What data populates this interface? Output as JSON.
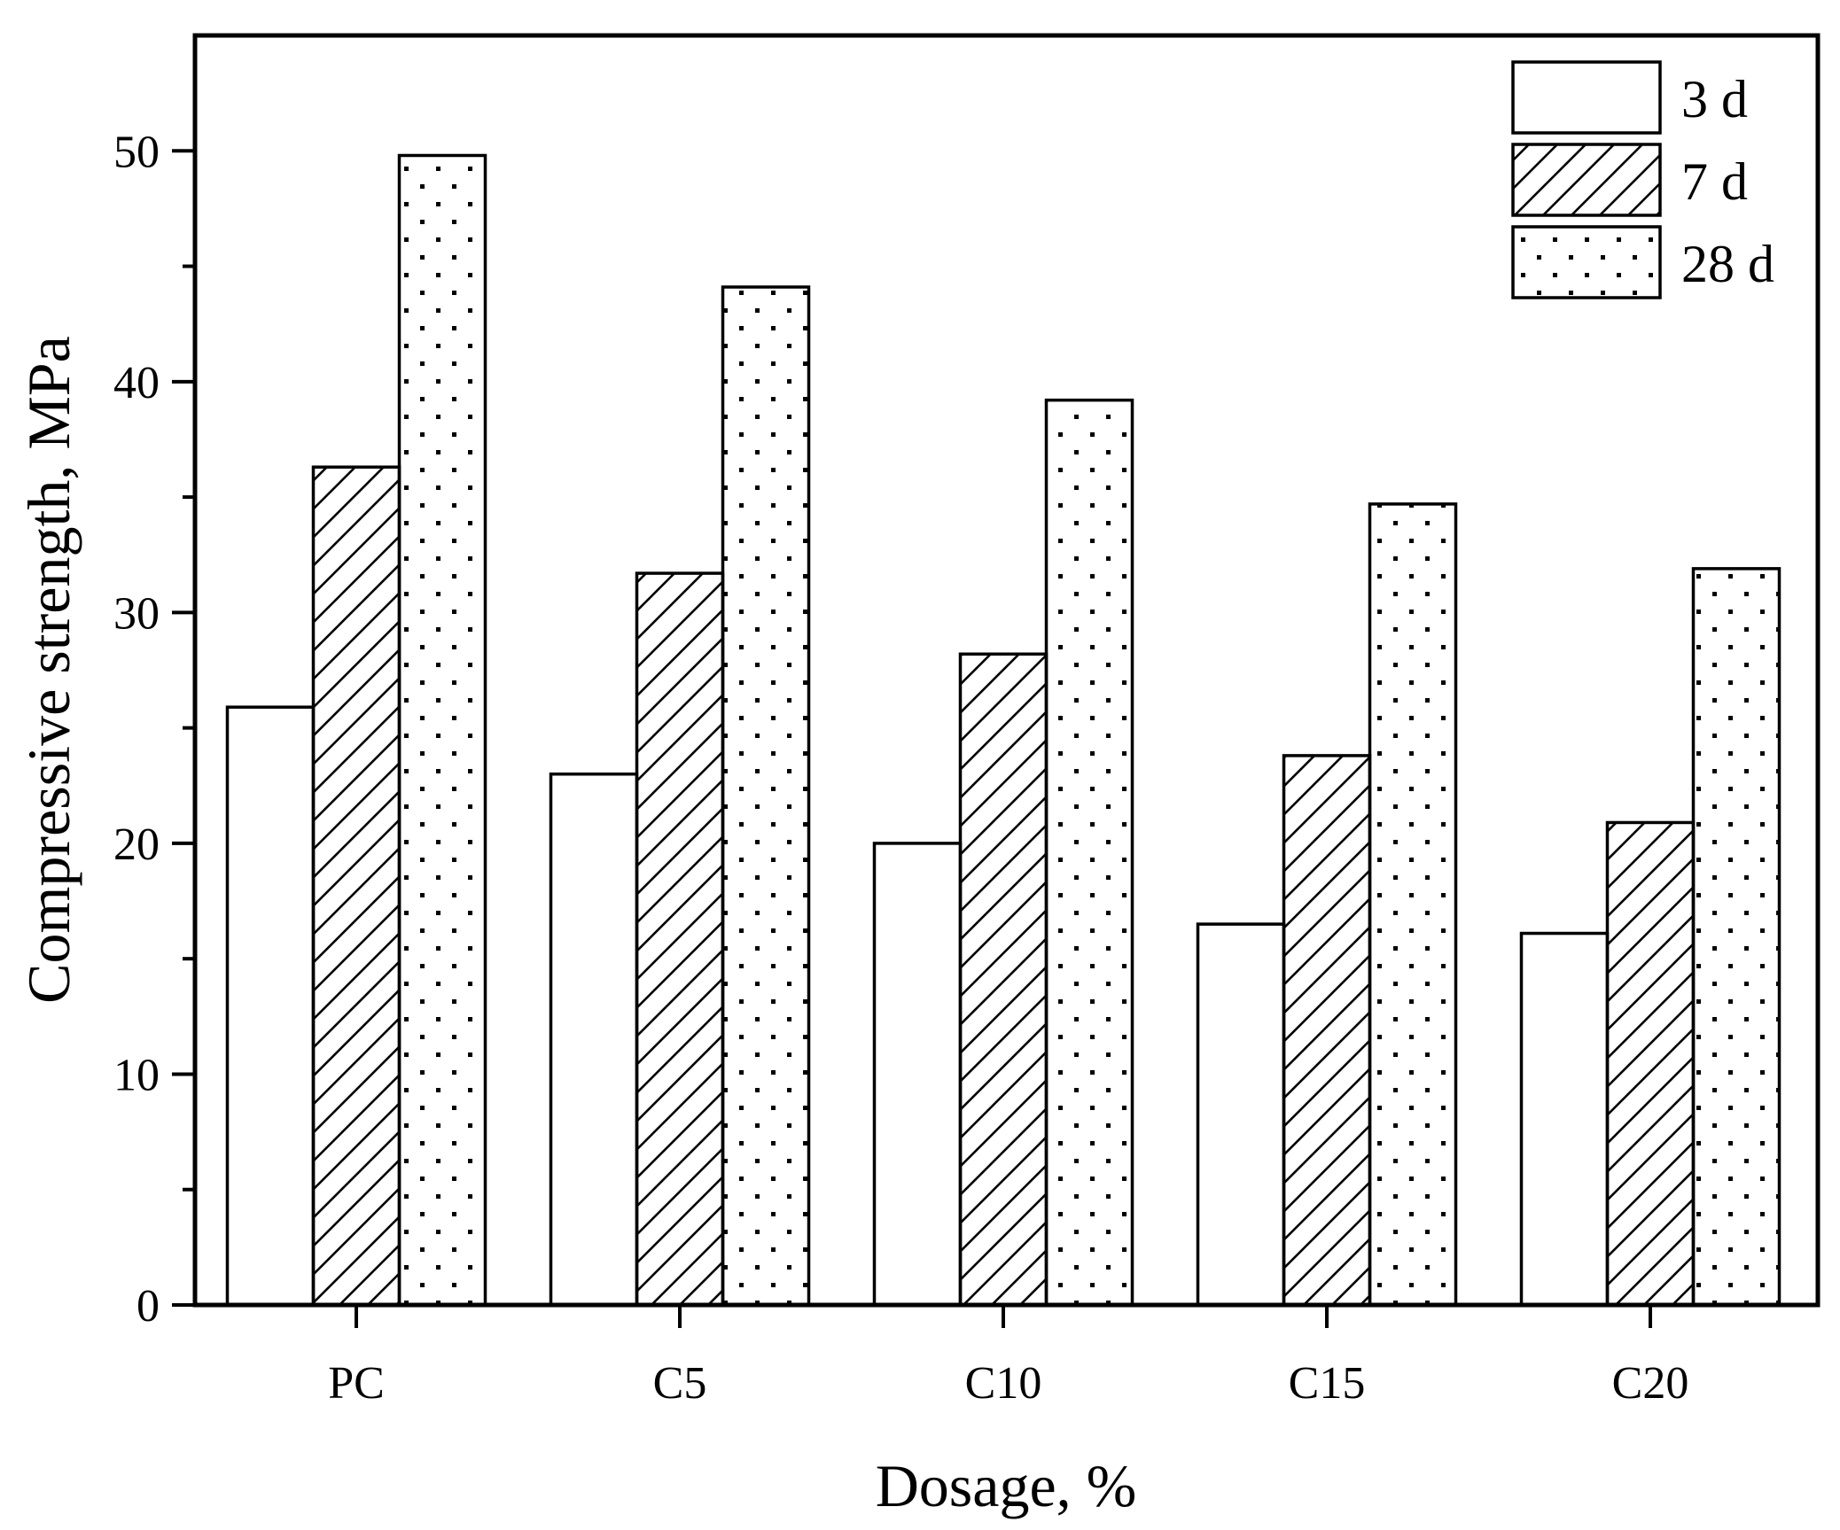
{
  "chart_data": {
    "type": "bar",
    "title": "",
    "xlabel": "Dosage, %",
    "ylabel": "Compressive strength, MPa",
    "categories": [
      "PC",
      "C5",
      "C10",
      "C15",
      "C20"
    ],
    "ylim": [
      0,
      55
    ],
    "yticks": [
      0,
      10,
      20,
      30,
      40,
      50
    ],
    "yticks_labels": [
      "0",
      "10",
      "20",
      "30",
      "40",
      "50"
    ],
    "grid": false,
    "legend_position": "top-right",
    "series": [
      {
        "name": "3 d",
        "pattern": "plain",
        "values": [
          25.9,
          23.0,
          20.0,
          16.5,
          16.1
        ]
      },
      {
        "name": "7 d",
        "pattern": "hatch",
        "values": [
          36.3,
          31.7,
          28.2,
          23.8,
          20.9
        ]
      },
      {
        "name": "28 d",
        "pattern": "dots",
        "values": [
          49.8,
          44.1,
          39.2,
          34.7,
          31.9
        ]
      }
    ],
    "colors": {
      "bar_fill": "#ffffff",
      "stroke": "#000000"
    }
  }
}
